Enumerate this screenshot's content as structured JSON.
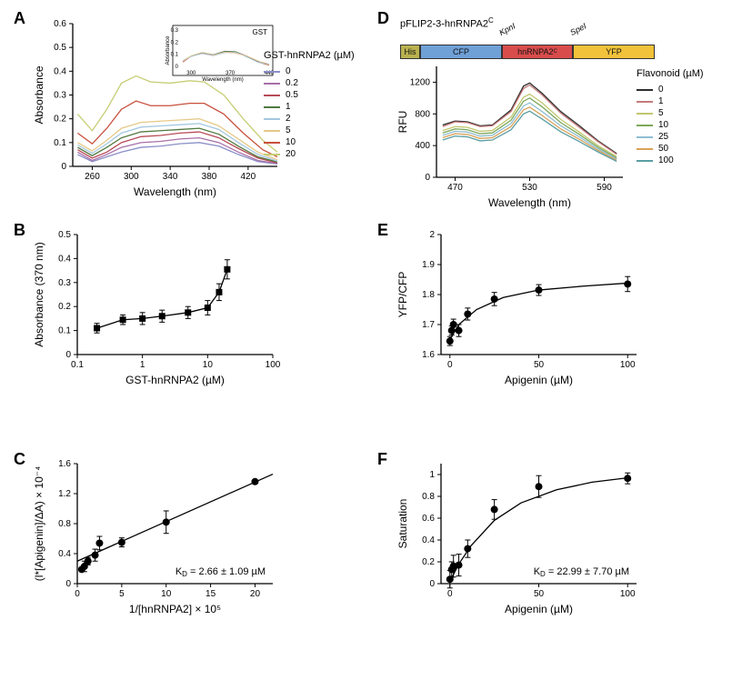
{
  "panelA": {
    "label": "A",
    "xlabel": "Wavelength (nm)",
    "ylabel": "Absorbance",
    "xlim": [
      240,
      450
    ],
    "ylim": [
      0,
      0.6
    ],
    "xticks": [
      260,
      300,
      340,
      380,
      420
    ],
    "yticks": [
      0,
      0.1,
      0.2,
      0.3,
      0.4,
      0.5,
      0.6
    ],
    "legend_title": "GST-hnRNPA2 (µM)",
    "series": [
      {
        "label": "0",
        "color": "#8a8fc7",
        "data": [
          [
            245,
            0.05
          ],
          [
            260,
            0.02
          ],
          [
            275,
            0.04
          ],
          [
            290,
            0.06
          ],
          [
            310,
            0.08
          ],
          [
            330,
            0.085
          ],
          [
            350,
            0.095
          ],
          [
            370,
            0.1
          ],
          [
            390,
            0.085
          ],
          [
            410,
            0.05
          ],
          [
            430,
            0.02
          ],
          [
            450,
            0.01
          ]
        ]
      },
      {
        "label": "0.2",
        "color": "#a96fa8",
        "data": [
          [
            245,
            0.06
          ],
          [
            260,
            0.025
          ],
          [
            275,
            0.05
          ],
          [
            290,
            0.08
          ],
          [
            310,
            0.1
          ],
          [
            330,
            0.105
          ],
          [
            350,
            0.115
          ],
          [
            370,
            0.12
          ],
          [
            390,
            0.1
          ],
          [
            410,
            0.06
          ],
          [
            430,
            0.025
          ],
          [
            450,
            0.012
          ]
        ]
      },
      {
        "label": "0.5",
        "color": "#b84b57",
        "data": [
          [
            245,
            0.07
          ],
          [
            260,
            0.035
          ],
          [
            275,
            0.06
          ],
          [
            290,
            0.1
          ],
          [
            310,
            0.125
          ],
          [
            330,
            0.13
          ],
          [
            350,
            0.14
          ],
          [
            370,
            0.145
          ],
          [
            390,
            0.12
          ],
          [
            410,
            0.075
          ],
          [
            430,
            0.035
          ],
          [
            450,
            0.015
          ]
        ]
      },
      {
        "label": "1",
        "color": "#527a3f",
        "data": [
          [
            245,
            0.08
          ],
          [
            260,
            0.045
          ],
          [
            275,
            0.08
          ],
          [
            290,
            0.12
          ],
          [
            310,
            0.145
          ],
          [
            330,
            0.15
          ],
          [
            350,
            0.155
          ],
          [
            370,
            0.16
          ],
          [
            390,
            0.135
          ],
          [
            410,
            0.085
          ],
          [
            430,
            0.04
          ],
          [
            450,
            0.018
          ]
        ]
      },
      {
        "label": "2",
        "color": "#a4c8e0",
        "data": [
          [
            245,
            0.09
          ],
          [
            260,
            0.055
          ],
          [
            275,
            0.095
          ],
          [
            290,
            0.14
          ],
          [
            310,
            0.165
          ],
          [
            330,
            0.17
          ],
          [
            350,
            0.175
          ],
          [
            370,
            0.18
          ],
          [
            390,
            0.155
          ],
          [
            410,
            0.1
          ],
          [
            430,
            0.05
          ],
          [
            450,
            0.022
          ]
        ]
      },
      {
        "label": "5",
        "color": "#e6c988",
        "data": [
          [
            245,
            0.1
          ],
          [
            260,
            0.065
          ],
          [
            275,
            0.11
          ],
          [
            290,
            0.16
          ],
          [
            310,
            0.185
          ],
          [
            330,
            0.19
          ],
          [
            350,
            0.195
          ],
          [
            370,
            0.2
          ],
          [
            390,
            0.17
          ],
          [
            410,
            0.115
          ],
          [
            430,
            0.06
          ],
          [
            450,
            0.028
          ]
        ]
      },
      {
        "label": "10",
        "color": "#c84f3d",
        "data": [
          [
            245,
            0.14
          ],
          [
            260,
            0.095
          ],
          [
            275,
            0.16
          ],
          [
            290,
            0.24
          ],
          [
            305,
            0.275
          ],
          [
            320,
            0.255
          ],
          [
            340,
            0.255
          ],
          [
            360,
            0.265
          ],
          [
            375,
            0.265
          ],
          [
            395,
            0.22
          ],
          [
            415,
            0.14
          ],
          [
            435,
            0.07
          ],
          [
            450,
            0.04
          ]
        ]
      },
      {
        "label": "20",
        "color": "#c6cd74",
        "data": [
          [
            245,
            0.22
          ],
          [
            260,
            0.15
          ],
          [
            275,
            0.24
          ],
          [
            290,
            0.35
          ],
          [
            305,
            0.38
          ],
          [
            320,
            0.355
          ],
          [
            340,
            0.35
          ],
          [
            360,
            0.36
          ],
          [
            375,
            0.355
          ],
          [
            395,
            0.3
          ],
          [
            415,
            0.2
          ],
          [
            435,
            0.11
          ],
          [
            450,
            0.06
          ]
        ]
      }
    ],
    "inset": {
      "title": "GST",
      "xlabel": "Wavelength (nm)",
      "ylabel": "Absorbance",
      "xlim": [
        280,
        440
      ],
      "ylim": [
        0,
        0.3
      ],
      "xticks": [
        300,
        370,
        440
      ],
      "yticks": [
        0,
        0.1,
        0.2,
        0.3
      ],
      "data": [
        [
          285,
          0.04
        ],
        [
          300,
          0.085
        ],
        [
          320,
          0.11
        ],
        [
          340,
          0.095
        ],
        [
          360,
          0.12
        ],
        [
          380,
          0.115
        ],
        [
          400,
          0.08
        ],
        [
          420,
          0.04
        ],
        [
          440,
          0.015
        ]
      ]
    }
  },
  "panelB": {
    "label": "B",
    "xlabel": "GST-hnRNPA2 (µM)",
    "ylabel": "Absorbance (370 nm)",
    "xlog": true,
    "xlim": [
      0.1,
      100
    ],
    "ylim": [
      0,
      0.5
    ],
    "xticks": [
      0.1,
      1,
      10,
      100
    ],
    "yticks": [
      0,
      0.1,
      0.2,
      0.3,
      0.4,
      0.5
    ],
    "data": [
      [
        0.2,
        0.11,
        0.02
      ],
      [
        0.5,
        0.145,
        0.02
      ],
      [
        1,
        0.15,
        0.025
      ],
      [
        2,
        0.16,
        0.025
      ],
      [
        5,
        0.175,
        0.025
      ],
      [
        10,
        0.195,
        0.03
      ],
      [
        15,
        0.26,
        0.035
      ],
      [
        20,
        0.355,
        0.04
      ]
    ]
  },
  "panelC": {
    "label": "C",
    "xlabel": "1/[hnRNPA2] × 10⁵",
    "ylabel": "(l*[Apigenin]/ΔA) × 10⁻⁴",
    "xlim": [
      0,
      22
    ],
    "ylim": [
      0,
      1.6
    ],
    "xticks": [
      0,
      5,
      10,
      15,
      20
    ],
    "yticks": [
      0,
      0.4,
      0.8,
      1.2,
      1.6
    ],
    "data": [
      [
        0.5,
        0.19,
        0.03
      ],
      [
        0.8,
        0.23,
        0.07
      ],
      [
        1.2,
        0.3,
        0.05
      ],
      [
        2,
        0.38,
        0.08
      ],
      [
        2.5,
        0.54,
        0.09
      ],
      [
        5,
        0.55,
        0.06
      ],
      [
        10,
        0.82,
        0.15
      ],
      [
        20,
        1.36,
        0.02
      ]
    ],
    "fit": [
      [
        0,
        0.3
      ],
      [
        22,
        1.46
      ]
    ],
    "kd": "K_D = 2.66 ± 1.09 µM"
  },
  "panelD": {
    "label": "D",
    "construct": {
      "name": "pFLIP2-3-hnRNPA2^C",
      "parts": [
        {
          "label": "His",
          "color": "#b9b14f",
          "w": 22
        },
        {
          "label": "CFP",
          "color": "#6fa0d6",
          "w": 90
        },
        {
          "label": "hnRNPA2^C",
          "color": "#d94c4c",
          "w": 78
        },
        {
          "label": "YFP",
          "color": "#f2c23a",
          "w": 90
        }
      ],
      "sites": [
        {
          "label": "KpnI",
          "x": 112
        },
        {
          "label": "SpeI",
          "x": 190
        }
      ]
    },
    "xlabel": "Wavelength (nm)",
    "ylabel": "RFU",
    "xlim": [
      455,
      605
    ],
    "ylim": [
      0,
      1400
    ],
    "xticks": [
      470,
      530,
      590
    ],
    "yticks": [
      0,
      400,
      800,
      1200
    ],
    "legend_title": "Flavonoid (µM)",
    "series": [
      {
        "label": "0",
        "color": "#2d2d2d",
        "data": [
          [
            460,
            660
          ],
          [
            470,
            710
          ],
          [
            480,
            700
          ],
          [
            490,
            650
          ],
          [
            500,
            660
          ],
          [
            515,
            850
          ],
          [
            525,
            1150
          ],
          [
            530,
            1190
          ],
          [
            540,
            1060
          ],
          [
            555,
            830
          ],
          [
            570,
            650
          ],
          [
            585,
            460
          ],
          [
            600,
            300
          ]
        ]
      },
      {
        "label": "1",
        "color": "#c77a7a",
        "data": [
          [
            460,
            640
          ],
          [
            470,
            700
          ],
          [
            480,
            690
          ],
          [
            490,
            640
          ],
          [
            500,
            650
          ],
          [
            515,
            830
          ],
          [
            525,
            1120
          ],
          [
            530,
            1165
          ],
          [
            540,
            1040
          ],
          [
            555,
            810
          ],
          [
            570,
            630
          ],
          [
            585,
            450
          ],
          [
            600,
            290
          ]
        ]
      },
      {
        "label": "5",
        "color": "#c1c76f",
        "data": [
          [
            460,
            590
          ],
          [
            470,
            640
          ],
          [
            480,
            630
          ],
          [
            490,
            580
          ],
          [
            500,
            590
          ],
          [
            515,
            760
          ],
          [
            525,
            1010
          ],
          [
            530,
            1050
          ],
          [
            540,
            940
          ],
          [
            555,
            730
          ],
          [
            570,
            570
          ],
          [
            585,
            400
          ],
          [
            600,
            260
          ]
        ]
      },
      {
        "label": "10",
        "color": "#7da85a",
        "data": [
          [
            460,
            560
          ],
          [
            470,
            610
          ],
          [
            480,
            600
          ],
          [
            490,
            550
          ],
          [
            500,
            560
          ],
          [
            515,
            720
          ],
          [
            525,
            960
          ],
          [
            530,
            1000
          ],
          [
            540,
            890
          ],
          [
            555,
            690
          ],
          [
            570,
            540
          ],
          [
            585,
            380
          ],
          [
            600,
            245
          ]
        ]
      },
      {
        "label": "25",
        "color": "#8fbdd3",
        "data": [
          [
            460,
            530
          ],
          [
            470,
            580
          ],
          [
            480,
            570
          ],
          [
            490,
            520
          ],
          [
            500,
            530
          ],
          [
            515,
            680
          ],
          [
            525,
            900
          ],
          [
            530,
            940
          ],
          [
            540,
            830
          ],
          [
            555,
            650
          ],
          [
            570,
            510
          ],
          [
            585,
            360
          ],
          [
            600,
            230
          ]
        ]
      },
      {
        "label": "50",
        "color": "#d9a25a",
        "data": [
          [
            460,
            500
          ],
          [
            470,
            550
          ],
          [
            480,
            540
          ],
          [
            490,
            490
          ],
          [
            500,
            500
          ],
          [
            515,
            640
          ],
          [
            525,
            850
          ],
          [
            530,
            885
          ],
          [
            540,
            780
          ],
          [
            555,
            610
          ],
          [
            570,
            480
          ],
          [
            585,
            340
          ],
          [
            600,
            215
          ]
        ]
      },
      {
        "label": "100",
        "color": "#5a9ea3",
        "data": [
          [
            460,
            470
          ],
          [
            470,
            520
          ],
          [
            480,
            510
          ],
          [
            490,
            460
          ],
          [
            500,
            470
          ],
          [
            515,
            600
          ],
          [
            525,
            800
          ],
          [
            530,
            835
          ],
          [
            540,
            735
          ],
          [
            555,
            575
          ],
          [
            570,
            450
          ],
          [
            585,
            320
          ],
          [
            600,
            200
          ]
        ]
      }
    ]
  },
  "panelE": {
    "label": "E",
    "xlabel": "Apigenin (µM)",
    "ylabel": "YFP/CFP",
    "xlim": [
      -5,
      105
    ],
    "ylim": [
      1.6,
      2.0
    ],
    "xticks": [
      0,
      50,
      100
    ],
    "yticks": [
      1.6,
      1.7,
      1.8,
      1.9,
      2.0
    ],
    "data": [
      [
        0,
        1.645,
        0.015
      ],
      [
        1,
        1.68,
        0.015
      ],
      [
        2,
        1.7,
        0.018
      ],
      [
        5,
        1.68,
        0.02
      ],
      [
        10,
        1.735,
        0.02
      ],
      [
        25,
        1.785,
        0.022
      ],
      [
        50,
        1.815,
        0.018
      ],
      [
        100,
        1.835,
        0.025
      ]
    ],
    "fit": [
      [
        0,
        1.65
      ],
      [
        5,
        1.7
      ],
      [
        15,
        1.75
      ],
      [
        30,
        1.79
      ],
      [
        50,
        1.815
      ],
      [
        75,
        1.828
      ],
      [
        100,
        1.838
      ]
    ]
  },
  "panelF": {
    "label": "F",
    "xlabel": "Apigenin (µM)",
    "ylabel": "Saturation",
    "xlim": [
      -5,
      105
    ],
    "ylim": [
      0,
      1.1
    ],
    "xticks": [
      0,
      50,
      100
    ],
    "yticks": [
      0,
      0.2,
      0.4,
      0.6,
      0.8,
      1.0
    ],
    "data": [
      [
        0,
        0.04,
        0.08
      ],
      [
        1,
        0.13,
        0.07
      ],
      [
        2,
        0.16,
        0.1
      ],
      [
        5,
        0.17,
        0.1
      ],
      [
        10,
        0.32,
        0.08
      ],
      [
        25,
        0.68,
        0.09
      ],
      [
        50,
        0.89,
        0.1
      ],
      [
        100,
        0.965,
        0.05
      ]
    ],
    "fit": [
      [
        0,
        0.02
      ],
      [
        5,
        0.18
      ],
      [
        12,
        0.35
      ],
      [
        25,
        0.58
      ],
      [
        40,
        0.74
      ],
      [
        60,
        0.86
      ],
      [
        80,
        0.93
      ],
      [
        100,
        0.97
      ]
    ],
    "kd": "K_D = 22.99 ± 7.70 µM"
  }
}
